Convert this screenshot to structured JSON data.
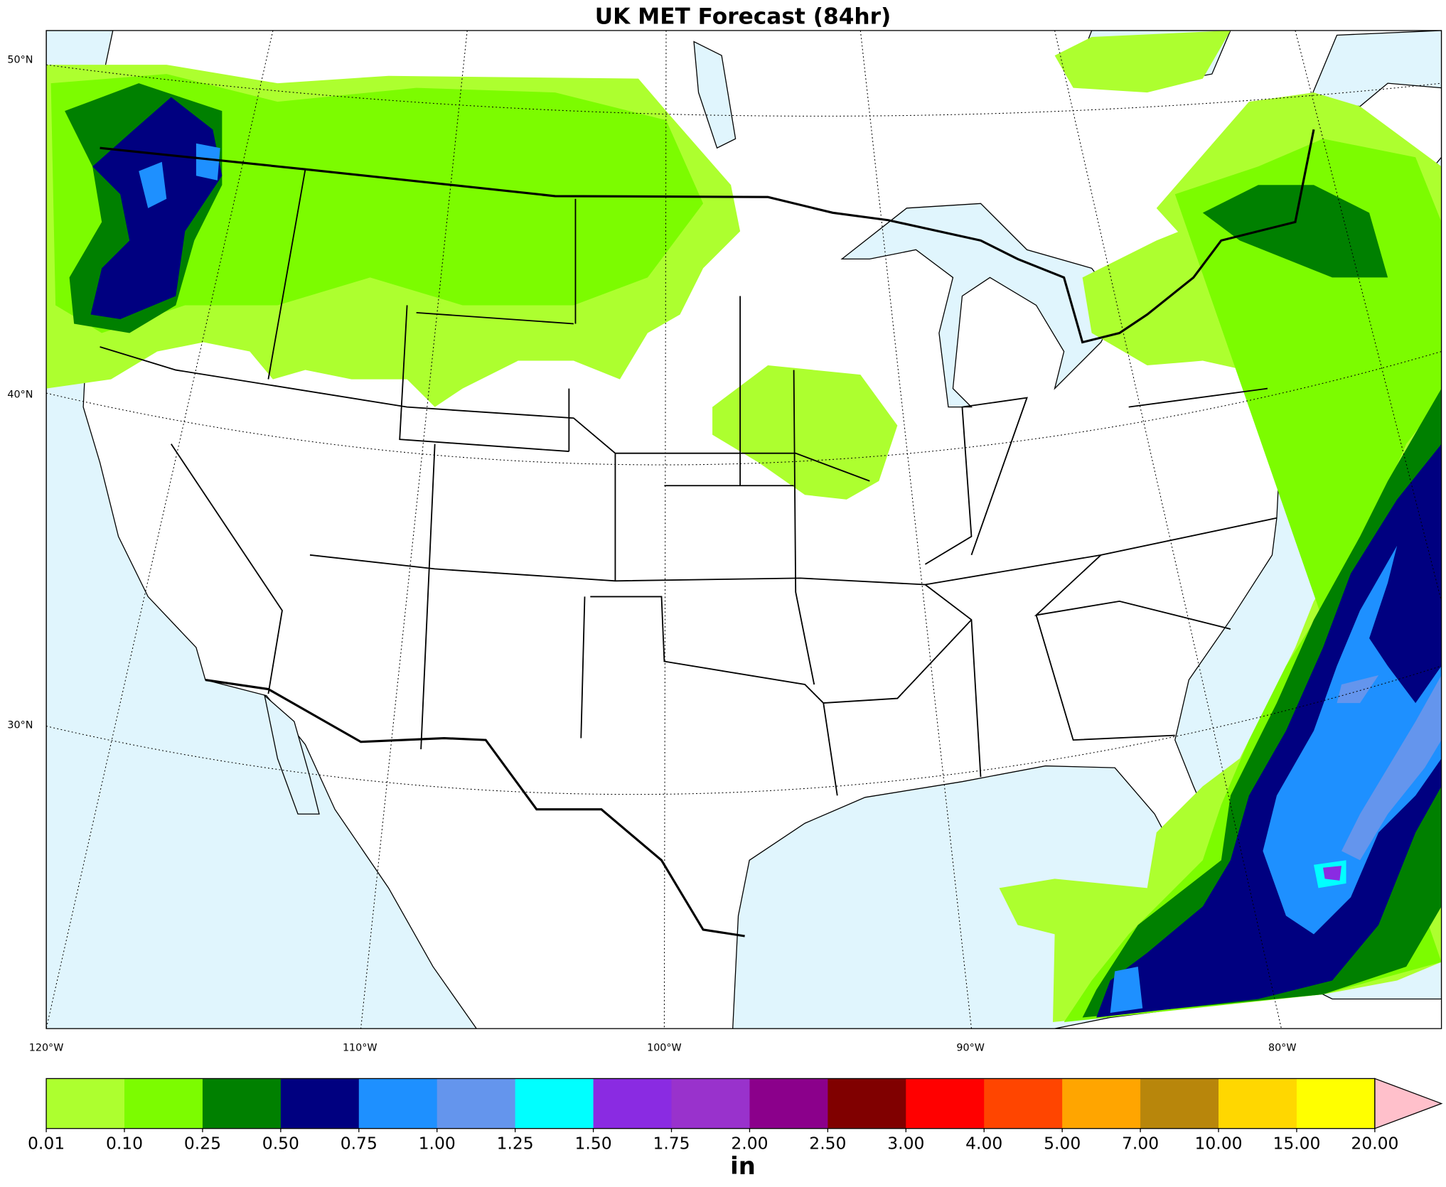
{
  "title": "UK MET Forecast (84hr)",
  "map": {
    "lat_labels": [
      "50°N",
      "40°N",
      "30°N"
    ],
    "lon_labels": [
      "120°W",
      "110°W",
      "100°W",
      "90°W",
      "80°W"
    ]
  },
  "colorbar": {
    "ticks": [
      "0.01",
      "0.10",
      "0.25",
      "0.50",
      "0.75",
      "1.00",
      "1.25",
      "1.50",
      "1.75",
      "2.00",
      "2.50",
      "3.00",
      "4.00",
      "5.00",
      "7.00",
      "10.00",
      "15.00",
      "20.00"
    ],
    "colors": [
      "#adff2f",
      "#7cfc00",
      "#008000",
      "#000080",
      "#1e90ff",
      "#6495ed",
      "#00ffff",
      "#8a2be2",
      "#9932cc",
      "#8b008b",
      "#800000",
      "#ff0000",
      "#ff4500",
      "#ffa500",
      "#b8860b",
      "#ffd700",
      "#ffff00"
    ],
    "extend_color": "#ffc0cb",
    "label": "in"
  }
}
